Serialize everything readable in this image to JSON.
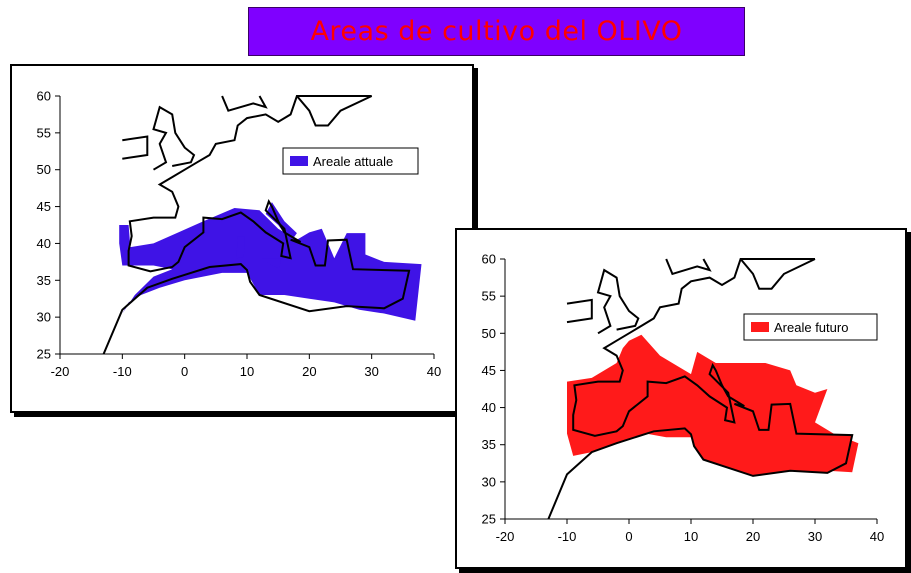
{
  "title": "Areas de cultivo del OLIVO",
  "chart_data": [
    {
      "type": "area",
      "xlim": [
        -20,
        40
      ],
      "ylim": [
        25,
        60
      ],
      "xticks": [
        -20,
        -10,
        0,
        10,
        20,
        30,
        40
      ],
      "yticks": [
        25,
        30,
        35,
        40,
        45,
        50,
        55,
        60
      ],
      "legend": {
        "label": "Areale attuale",
        "color": "#3f13e6",
        "position": "top-right"
      },
      "region_color": "#3f13e6",
      "regions": [
        [
          [
            -10.5,
            42.5
          ],
          [
            -9,
            42.5
          ],
          [
            -8.7,
            39.5
          ],
          [
            -5,
            40
          ],
          [
            -1,
            41.5
          ],
          [
            3,
            43
          ],
          [
            8,
            44.8
          ],
          [
            12,
            44.5
          ],
          [
            15,
            42
          ],
          [
            18,
            40.5
          ],
          [
            20,
            41.5
          ],
          [
            22,
            42
          ],
          [
            23,
            40
          ],
          [
            24,
            38
          ],
          [
            26,
            41.4
          ],
          [
            29,
            41.4
          ],
          [
            29,
            38.5
          ],
          [
            32,
            37.5
          ],
          [
            38,
            37.2
          ],
          [
            37,
            29.5
          ],
          [
            32,
            30.5
          ],
          [
            28,
            31
          ],
          [
            24,
            32
          ],
          [
            20,
            32.5
          ],
          [
            16,
            33
          ],
          [
            12,
            33
          ],
          [
            10,
            36
          ],
          [
            6,
            36
          ],
          [
            0,
            35
          ],
          [
            -4,
            34
          ],
          [
            -7,
            33
          ],
          [
            -9,
            32
          ],
          [
            -10,
            30.5
          ],
          [
            -8,
            33
          ],
          [
            -5,
            35.5
          ],
          [
            -2,
            36.5
          ],
          [
            -5,
            37
          ],
          [
            -8,
            37
          ],
          [
            -10,
            37
          ],
          [
            -10.5,
            40
          ]
        ],
        [
          [
            8.3,
            38
          ],
          [
            9.5,
            38.2
          ],
          [
            9.6,
            41
          ],
          [
            8.5,
            41
          ]
        ],
        [
          [
            12.5,
            38
          ],
          [
            15.5,
            38
          ],
          [
            15.2,
            36.6
          ],
          [
            14,
            37
          ]
        ],
        [
          [
            14,
            45.6
          ],
          [
            16,
            43
          ],
          [
            18,
            41.4
          ],
          [
            17,
            40.2
          ],
          [
            15,
            42.5
          ],
          [
            13,
            44
          ]
        ]
      ],
      "coastlines": [
        [
          [
            -13,
            25
          ],
          [
            -10,
            31
          ],
          [
            -6,
            34
          ],
          [
            -2,
            35.2
          ],
          [
            4,
            36.8
          ],
          [
            9,
            37.2
          ],
          [
            10,
            36.4
          ],
          [
            10.5,
            34.8
          ],
          [
            12,
            33
          ],
          [
            20,
            30.8
          ],
          [
            26,
            31.5
          ],
          [
            32,
            31.2
          ],
          [
            35,
            32.5
          ],
          [
            36,
            36.3
          ],
          [
            27,
            36.5
          ],
          [
            26,
            40.5
          ],
          [
            23,
            40.4
          ],
          [
            22.5,
            37
          ],
          [
            21,
            37
          ],
          [
            20,
            39.5
          ],
          [
            17,
            40.5
          ],
          [
            18.6,
            40.2
          ],
          [
            16,
            41.5
          ],
          [
            15,
            43
          ],
          [
            14,
            45
          ],
          [
            13.5,
            45.7
          ],
          [
            13,
            44.5
          ],
          [
            16,
            42
          ],
          [
            17,
            38
          ],
          [
            15.5,
            38.3
          ],
          [
            15.8,
            40
          ],
          [
            13,
            41.5
          ],
          [
            11,
            43
          ],
          [
            9,
            44.2
          ],
          [
            6,
            43.3
          ],
          [
            3,
            43.5
          ],
          [
            3,
            41.5
          ],
          [
            0,
            39.5
          ],
          [
            -1,
            37.5
          ],
          [
            -2,
            36.8
          ],
          [
            -5.5,
            36.2
          ],
          [
            -9,
            37
          ],
          [
            -9,
            39
          ],
          [
            -8.5,
            41
          ],
          [
            -8.8,
            43
          ],
          [
            -5,
            43.5
          ],
          [
            -1.5,
            43.5
          ],
          [
            -1,
            45
          ],
          [
            -2,
            47
          ],
          [
            -4,
            48
          ],
          [
            -2,
            49
          ],
          [
            0,
            50
          ],
          [
            2,
            51
          ],
          [
            4,
            52
          ],
          [
            5,
            53.5
          ],
          [
            8,
            54
          ],
          [
            8.5,
            56
          ],
          [
            10,
            57
          ],
          [
            13,
            57.5
          ],
          [
            15,
            56.5
          ],
          [
            17,
            57.5
          ],
          [
            18,
            60
          ],
          [
            30,
            60
          ]
        ],
        [
          [
            -10,
            51.5
          ],
          [
            -6,
            52
          ],
          [
            -6,
            54.5
          ],
          [
            -10,
            54
          ]
        ],
        [
          [
            -5,
            50
          ],
          [
            -3,
            51
          ],
          [
            -4,
            53.5
          ],
          [
            -3,
            55
          ],
          [
            -5,
            55.5
          ],
          [
            -4,
            58.5
          ],
          [
            -2,
            57.5
          ],
          [
            -1.5,
            55
          ],
          [
            0,
            53
          ],
          [
            1.5,
            52
          ],
          [
            1,
            51
          ],
          [
            -2,
            50.5
          ]
        ],
        [
          [
            6,
            60
          ],
          [
            7,
            58
          ],
          [
            11,
            59
          ],
          [
            13,
            58.5
          ],
          [
            12,
            60
          ]
        ],
        [
          [
            18,
            60
          ],
          [
            20,
            58
          ],
          [
            21,
            56
          ],
          [
            23,
            56
          ],
          [
            25,
            58
          ],
          [
            30,
            60
          ]
        ]
      ]
    },
    {
      "type": "area",
      "xlim": [
        -20,
        40
      ],
      "ylim": [
        25,
        60
      ],
      "xticks": [
        -20,
        -10,
        0,
        10,
        20,
        30,
        40
      ],
      "yticks": [
        25,
        30,
        35,
        40,
        45,
        50,
        55,
        60
      ],
      "legend": {
        "label": "Areale futuro",
        "color": "#ff1a1a",
        "position": "top-right"
      },
      "region_color": "#ff1a1a",
      "regions": [
        [
          [
            -10,
            43.5
          ],
          [
            -6,
            44
          ],
          [
            -2,
            46
          ],
          [
            -1,
            48
          ],
          [
            0,
            49
          ],
          [
            2,
            49.8
          ],
          [
            5,
            47
          ],
          [
            8,
            45.5
          ],
          [
            10,
            44.5
          ],
          [
            11,
            47.5
          ],
          [
            14,
            46
          ],
          [
            18,
            46
          ],
          [
            22,
            46
          ],
          [
            26,
            45
          ],
          [
            27,
            43
          ],
          [
            30,
            42
          ],
          [
            32,
            42.5
          ],
          [
            30,
            38
          ],
          [
            33,
            36.5
          ],
          [
            37,
            35.2
          ],
          [
            36,
            31.3
          ],
          [
            32,
            31.5
          ],
          [
            28,
            31.8
          ],
          [
            24,
            32
          ],
          [
            20,
            32.5
          ],
          [
            17,
            33
          ],
          [
            12,
            33
          ],
          [
            10,
            36
          ],
          [
            6,
            36
          ],
          [
            2,
            36.6
          ],
          [
            -3,
            35.7
          ],
          [
            -7,
            34.8
          ],
          [
            -9,
            33.5
          ],
          [
            -8,
            35.6
          ],
          [
            -5,
            36.5
          ],
          [
            -1,
            37.3
          ],
          [
            0,
            39.5
          ],
          [
            3,
            41.5
          ],
          [
            3,
            43.3
          ],
          [
            6,
            43.3
          ],
          [
            9,
            44.2
          ],
          [
            11,
            43
          ],
          [
            13,
            41.5
          ],
          [
            15.8,
            40
          ],
          [
            15.5,
            38.3
          ],
          [
            17,
            38
          ],
          [
            16,
            42
          ],
          [
            13,
            44.5
          ],
          [
            13.5,
            45.7
          ],
          [
            14,
            45
          ],
          [
            15,
            43
          ],
          [
            16,
            41.5
          ],
          [
            18.6,
            40.2
          ],
          [
            17,
            40.5
          ],
          [
            20,
            39.5
          ],
          [
            21,
            37
          ],
          [
            22.5,
            37
          ],
          [
            23,
            40.4
          ],
          [
            26,
            40.5
          ],
          [
            27,
            36.5
          ],
          [
            36,
            36.3
          ],
          [
            35,
            32.5
          ],
          [
            32,
            31.2
          ],
          [
            26,
            31.5
          ],
          [
            20,
            30.8
          ],
          [
            12,
            33
          ],
          [
            10.5,
            34.8
          ],
          [
            10,
            36.4
          ],
          [
            9,
            37.2
          ],
          [
            4,
            36.8
          ],
          [
            -2,
            35.2
          ],
          [
            -6,
            34
          ],
          [
            -9,
            33.5
          ],
          [
            -10,
            36.5
          ]
        ],
        [
          [
            8.3,
            38
          ],
          [
            9.5,
            38.2
          ],
          [
            9.6,
            41
          ],
          [
            8.5,
            41
          ]
        ],
        [
          [
            12.5,
            38
          ],
          [
            15.5,
            38
          ],
          [
            15.2,
            36.6
          ],
          [
            14,
            37
          ]
        ],
        [
          [
            21,
            38.5
          ],
          [
            23,
            38.5
          ],
          [
            22.5,
            37
          ],
          [
            21.5,
            37
          ]
        ]
      ],
      "coastlines": [
        [
          [
            -13,
            25
          ],
          [
            -10,
            31
          ],
          [
            -6,
            34
          ],
          [
            -2,
            35.2
          ],
          [
            4,
            36.8
          ],
          [
            9,
            37.2
          ],
          [
            10,
            36.4
          ],
          [
            10.5,
            34.8
          ],
          [
            12,
            33
          ],
          [
            20,
            30.8
          ],
          [
            26,
            31.5
          ],
          [
            32,
            31.2
          ],
          [
            35,
            32.5
          ],
          [
            36,
            36.3
          ],
          [
            27,
            36.5
          ],
          [
            26,
            40.5
          ],
          [
            23,
            40.4
          ],
          [
            22.5,
            37
          ],
          [
            21,
            37
          ],
          [
            20,
            39.5
          ],
          [
            17,
            40.5
          ],
          [
            18.6,
            40.2
          ],
          [
            16,
            41.5
          ],
          [
            15,
            43
          ],
          [
            14,
            45
          ],
          [
            13.5,
            45.7
          ],
          [
            13,
            44.5
          ],
          [
            16,
            42
          ],
          [
            17,
            38
          ],
          [
            15.5,
            38.3
          ],
          [
            15.8,
            40
          ],
          [
            13,
            41.5
          ],
          [
            11,
            43
          ],
          [
            9,
            44.2
          ],
          [
            6,
            43.3
          ],
          [
            3,
            43.5
          ],
          [
            3,
            41.5
          ],
          [
            0,
            39.5
          ],
          [
            -1,
            37.5
          ],
          [
            -2,
            36.8
          ],
          [
            -5.5,
            36.2
          ],
          [
            -9,
            37
          ],
          [
            -9,
            39
          ],
          [
            -8.5,
            41
          ],
          [
            -8.8,
            43
          ],
          [
            -5,
            43.5
          ],
          [
            -1.5,
            43.5
          ],
          [
            -1,
            45
          ],
          [
            -2,
            47
          ],
          [
            -4,
            48
          ],
          [
            -2,
            49
          ],
          [
            0,
            50
          ],
          [
            2,
            51
          ],
          [
            4,
            52
          ],
          [
            5,
            53.5
          ],
          [
            8,
            54
          ],
          [
            8.5,
            56
          ],
          [
            10,
            57
          ],
          [
            13,
            57.5
          ],
          [
            15,
            56.5
          ],
          [
            17,
            57.5
          ],
          [
            18,
            60
          ],
          [
            30,
            60
          ]
        ],
        [
          [
            -10,
            51.5
          ],
          [
            -6,
            52
          ],
          [
            -6,
            54.5
          ],
          [
            -10,
            54
          ]
        ],
        [
          [
            -5,
            50
          ],
          [
            -3,
            51
          ],
          [
            -4,
            53.5
          ],
          [
            -3,
            55
          ],
          [
            -5,
            55.5
          ],
          [
            -4,
            58.5
          ],
          [
            -2,
            57.5
          ],
          [
            -1.5,
            55
          ],
          [
            0,
            53
          ],
          [
            1.5,
            52
          ],
          [
            1,
            51
          ],
          [
            -2,
            50.5
          ]
        ],
        [
          [
            6,
            60
          ],
          [
            7,
            58
          ],
          [
            11,
            59
          ],
          [
            13,
            58.5
          ],
          [
            12,
            60
          ]
        ],
        [
          [
            18,
            60
          ],
          [
            20,
            58
          ],
          [
            21,
            56
          ],
          [
            23,
            56
          ],
          [
            25,
            58
          ],
          [
            30,
            60
          ]
        ]
      ]
    }
  ]
}
